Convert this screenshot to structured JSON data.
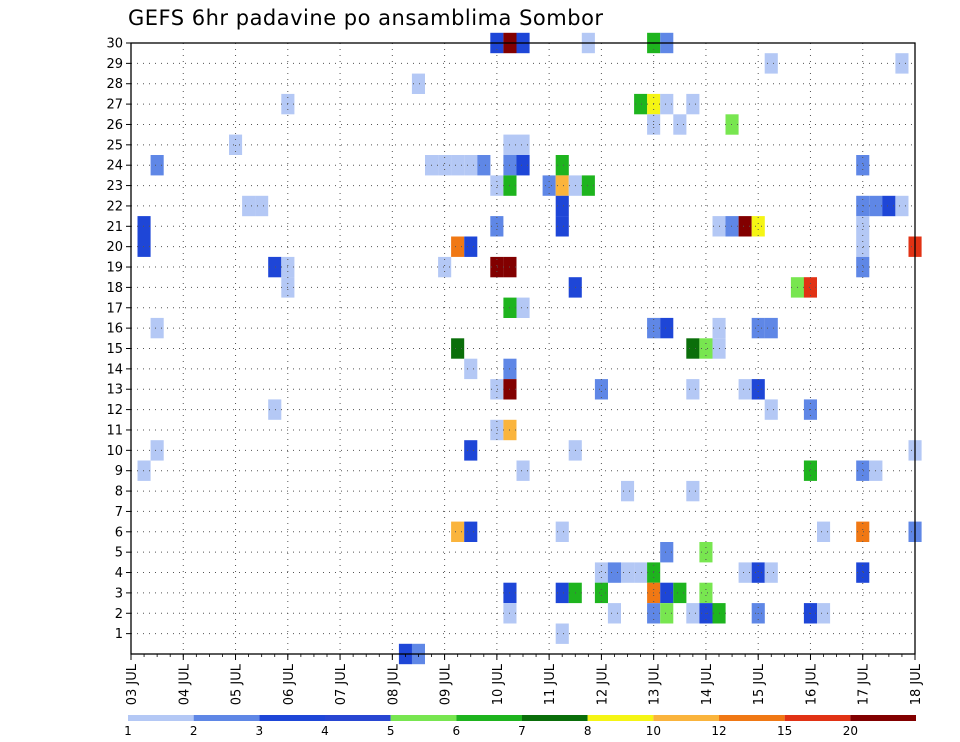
{
  "chart_data": {
    "type": "heatmap",
    "title": "GEFS 6hr padavine po ansamblima Sombor",
    "xlabel": "",
    "ylabel": "",
    "x_range": [
      0,
      30
    ],
    "y_range": [
      0,
      30
    ],
    "grid": true,
    "y_ticks": [
      "1",
      "2",
      "3",
      "4",
      "5",
      "6",
      "7",
      "8",
      "9",
      "10",
      "11",
      "12",
      "13",
      "14",
      "15",
      "16",
      "17",
      "18",
      "19",
      "20",
      "21",
      "22",
      "23",
      "24",
      "25",
      "26",
      "27",
      "28",
      "29",
      "30"
    ],
    "x_ticks": [
      "03 JUL",
      "04 JUL",
      "05 JUL",
      "06 JUL",
      "07 JUL",
      "08 JUL",
      "09 JUL",
      "10 JUL",
      "11 JUL",
      "12 JUL",
      "13 JUL",
      "14 JUL",
      "15 JUL",
      "16 JUL",
      "17 JUL",
      "18 JUL"
    ],
    "colorbar": {
      "labels": [
        "1",
        "2",
        "3",
        "4",
        "5",
        "6",
        "7",
        "8",
        "10",
        "12",
        "15",
        "20"
      ],
      "colors": [
        "#b4c8f5",
        "#5f87e6",
        "#1e46d7",
        "#2846d2",
        "#78e650",
        "#1eb41e",
        "#0a6e0a",
        "#f5f514",
        "#fab43c",
        "#f07814",
        "#e13214",
        "#820000"
      ]
    },
    "levels": [
      "1",
      "2",
      "3",
      "4",
      "5",
      "6",
      "7",
      "8",
      "10",
      "12",
      "15",
      "20"
    ],
    "cells": [
      {
        "t": 0.5,
        "m": 21,
        "level": 2
      },
      {
        "t": 0.5,
        "m": 20,
        "level": 2
      },
      {
        "t": 0.5,
        "m": 9,
        "level": 0
      },
      {
        "t": 1,
        "m": 24,
        "level": 1
      },
      {
        "t": 1,
        "m": 16,
        "level": 0
      },
      {
        "t": 1,
        "m": 10,
        "level": 0
      },
      {
        "t": 4,
        "m": 25,
        "level": 0
      },
      {
        "t": 4.5,
        "m": 22,
        "level": 0
      },
      {
        "t": 5,
        "m": 22,
        "level": 0
      },
      {
        "t": 5.5,
        "m": 19,
        "level": 2
      },
      {
        "t": 5.5,
        "m": 12,
        "level": 0
      },
      {
        "t": 6,
        "m": 27,
        "level": 0
      },
      {
        "t": 6,
        "m": 19,
        "level": 0
      },
      {
        "t": 6,
        "m": 18,
        "level": 0
      },
      {
        "t": 10.5,
        "m": 0,
        "level": 2
      },
      {
        "t": 11,
        "m": 0,
        "level": 1
      },
      {
        "t": 11,
        "m": 28,
        "level": 0
      },
      {
        "t": 11.5,
        "m": 24,
        "level": 0
      },
      {
        "t": 12,
        "m": 24,
        "level": 0
      },
      {
        "t": 12,
        "m": 19,
        "level": 0
      },
      {
        "t": 12.5,
        "m": 24,
        "level": 0
      },
      {
        "t": 12.5,
        "m": 20,
        "level": 9
      },
      {
        "t": 12.5,
        "m": 6,
        "level": 8
      },
      {
        "t": 12.5,
        "m": 15,
        "level": 6
      },
      {
        "t": 13,
        "m": 24,
        "level": 0
      },
      {
        "t": 13,
        "m": 20,
        "level": 2
      },
      {
        "t": 13,
        "m": 14,
        "level": 0
      },
      {
        "t": 13,
        "m": 10,
        "level": 2
      },
      {
        "t": 13,
        "m": 6,
        "level": 2
      },
      {
        "t": 13.5,
        "m": 24,
        "level": 1
      },
      {
        "t": 14,
        "m": 30,
        "level": 2
      },
      {
        "t": 14,
        "m": 23,
        "level": 0
      },
      {
        "t": 14,
        "m": 21,
        "level": 1
      },
      {
        "t": 14,
        "m": 19,
        "level": 11
      },
      {
        "t": 14,
        "m": 13,
        "level": 0
      },
      {
        "t": 14,
        "m": 11,
        "level": 0
      },
      {
        "t": 14.5,
        "m": 30,
        "level": 11
      },
      {
        "t": 14.5,
        "m": 25,
        "level": 0
      },
      {
        "t": 14.5,
        "m": 24,
        "level": 1
      },
      {
        "t": 14.5,
        "m": 23,
        "level": 5
      },
      {
        "t": 14.5,
        "m": 19,
        "level": 11
      },
      {
        "t": 14.5,
        "m": 17,
        "level": 5
      },
      {
        "t": 14.5,
        "m": 14,
        "level": 1
      },
      {
        "t": 14.5,
        "m": 13,
        "level": 11
      },
      {
        "t": 14.5,
        "m": 11,
        "level": 8
      },
      {
        "t": 14.5,
        "m": 3,
        "level": 2
      },
      {
        "t": 14.5,
        "m": 2,
        "level": 0
      },
      {
        "t": 15,
        "m": 30,
        "level": 2
      },
      {
        "t": 15,
        "m": 25,
        "level": 0
      },
      {
        "t": 15,
        "m": 24,
        "level": 2
      },
      {
        "t": 15,
        "m": 17,
        "level": 0
      },
      {
        "t": 15,
        "m": 9,
        "level": 0
      },
      {
        "t": 16,
        "m": 23,
        "level": 1
      },
      {
        "t": 16.5,
        "m": 24,
        "level": 5
      },
      {
        "t": 16.5,
        "m": 23,
        "level": 8
      },
      {
        "t": 16.5,
        "m": 22,
        "level": 2
      },
      {
        "t": 16.5,
        "m": 21,
        "level": 2
      },
      {
        "t": 16.5,
        "m": 3,
        "level": 2
      },
      {
        "t": 16.5,
        "m": 6,
        "level": 0
      },
      {
        "t": 16.5,
        "m": 1,
        "level": 0
      },
      {
        "t": 17,
        "m": 18,
        "level": 2
      },
      {
        "t": 17,
        "m": 10,
        "level": 0
      },
      {
        "t": 17,
        "m": 3,
        "level": 5
      },
      {
        "t": 17,
        "m": 23,
        "level": 0
      },
      {
        "t": 17.5,
        "m": 30,
        "level": 0
      },
      {
        "t": 17.5,
        "m": 23,
        "level": 5
      },
      {
        "t": 18,
        "m": 13,
        "level": 1
      },
      {
        "t": 18,
        "m": 4,
        "level": 0
      },
      {
        "t": 18,
        "m": 3,
        "level": 5
      },
      {
        "t": 18.5,
        "m": 4,
        "level": 1
      },
      {
        "t": 18.5,
        "m": 2,
        "level": 0
      },
      {
        "t": 19,
        "m": 4,
        "level": 0
      },
      {
        "t": 19,
        "m": 8,
        "level": 0
      },
      {
        "t": 19.5,
        "m": 4,
        "level": 0
      },
      {
        "t": 19.5,
        "m": 27,
        "level": 5
      },
      {
        "t": 20,
        "m": 30,
        "level": 5
      },
      {
        "t": 20,
        "m": 27,
        "level": 7
      },
      {
        "t": 20,
        "m": 26,
        "level": 0
      },
      {
        "t": 20,
        "m": 16,
        "level": 1
      },
      {
        "t": 20,
        "m": 4,
        "level": 5
      },
      {
        "t": 20,
        "m": 3,
        "level": 9
      },
      {
        "t": 20,
        "m": 2,
        "level": 1
      },
      {
        "t": 20.5,
        "m": 30,
        "level": 1
      },
      {
        "t": 20.5,
        "m": 27,
        "level": 0
      },
      {
        "t": 20.5,
        "m": 16,
        "level": 2
      },
      {
        "t": 20.5,
        "m": 5,
        "level": 1
      },
      {
        "t": 20.5,
        "m": 3,
        "level": 2
      },
      {
        "t": 20.5,
        "m": 2,
        "level": 4
      },
      {
        "t": 21,
        "m": 26,
        "level": 0
      },
      {
        "t": 21,
        "m": 3,
        "level": 5
      },
      {
        "t": 21.5,
        "m": 27,
        "level": 0
      },
      {
        "t": 21.5,
        "m": 15,
        "level": 6
      },
      {
        "t": 21.5,
        "m": 8,
        "level": 0
      },
      {
        "t": 21.5,
        "m": 13,
        "level": 0
      },
      {
        "t": 21.5,
        "m": 2,
        "level": 0
      },
      {
        "t": 22,
        "m": 15,
        "level": 4
      },
      {
        "t": 22,
        "m": 5,
        "level": 4
      },
      {
        "t": 22,
        "m": 3,
        "level": 4
      },
      {
        "t": 22,
        "m": 2,
        "level": 2
      },
      {
        "t": 22.5,
        "m": 21,
        "level": 0
      },
      {
        "t": 22.5,
        "m": 16,
        "level": 0
      },
      {
        "t": 22.5,
        "m": 15,
        "level": 0
      },
      {
        "t": 22.5,
        "m": 2,
        "level": 5
      },
      {
        "t": 23,
        "m": 26,
        "level": 4
      },
      {
        "t": 23,
        "m": 21,
        "level": 1
      },
      {
        "t": 23.5,
        "m": 21,
        "level": 11
      },
      {
        "t": 23.5,
        "m": 13,
        "level": 0
      },
      {
        "t": 23.5,
        "m": 4,
        "level": 0
      },
      {
        "t": 24,
        "m": 21,
        "level": 7
      },
      {
        "t": 24,
        "m": 16,
        "level": 1
      },
      {
        "t": 24,
        "m": 13,
        "level": 2
      },
      {
        "t": 24,
        "m": 4,
        "level": 2
      },
      {
        "t": 24,
        "m": 2,
        "level": 1
      },
      {
        "t": 24.5,
        "m": 29,
        "level": 0
      },
      {
        "t": 24.5,
        "m": 16,
        "level": 1
      },
      {
        "t": 24.5,
        "m": 12,
        "level": 0
      },
      {
        "t": 24.5,
        "m": 4,
        "level": 0
      },
      {
        "t": 25.5,
        "m": 18,
        "level": 4
      },
      {
        "t": 26,
        "m": 18,
        "level": 10
      },
      {
        "t": 26,
        "m": 12,
        "level": 1
      },
      {
        "t": 26,
        "m": 9,
        "level": 5
      },
      {
        "t": 26,
        "m": 2,
        "level": 2
      },
      {
        "t": 26.5,
        "m": 6,
        "level": 0
      },
      {
        "t": 26.5,
        "m": 2,
        "level": 0
      },
      {
        "t": 28,
        "m": 24,
        "level": 1
      },
      {
        "t": 28,
        "m": 22,
        "level": 1
      },
      {
        "t": 28,
        "m": 21,
        "level": 0
      },
      {
        "t": 28,
        "m": 20,
        "level": 0
      },
      {
        "t": 28,
        "m": 19,
        "level": 1
      },
      {
        "t": 28,
        "m": 9,
        "level": 1
      },
      {
        "t": 28,
        "m": 6,
        "level": 9
      },
      {
        "t": 28,
        "m": 4,
        "level": 2
      },
      {
        "t": 28.5,
        "m": 22,
        "level": 1
      },
      {
        "t": 28.5,
        "m": 9,
        "level": 0
      },
      {
        "t": 29,
        "m": 22,
        "level": 2
      },
      {
        "t": 29.5,
        "m": 29,
        "level": 0
      },
      {
        "t": 29.5,
        "m": 22,
        "level": 0
      },
      {
        "t": 30,
        "m": 20,
        "level": 10
      },
      {
        "t": 30,
        "m": 10,
        "level": 0
      },
      {
        "t": 30,
        "m": 6,
        "level": 1
      }
    ]
  }
}
